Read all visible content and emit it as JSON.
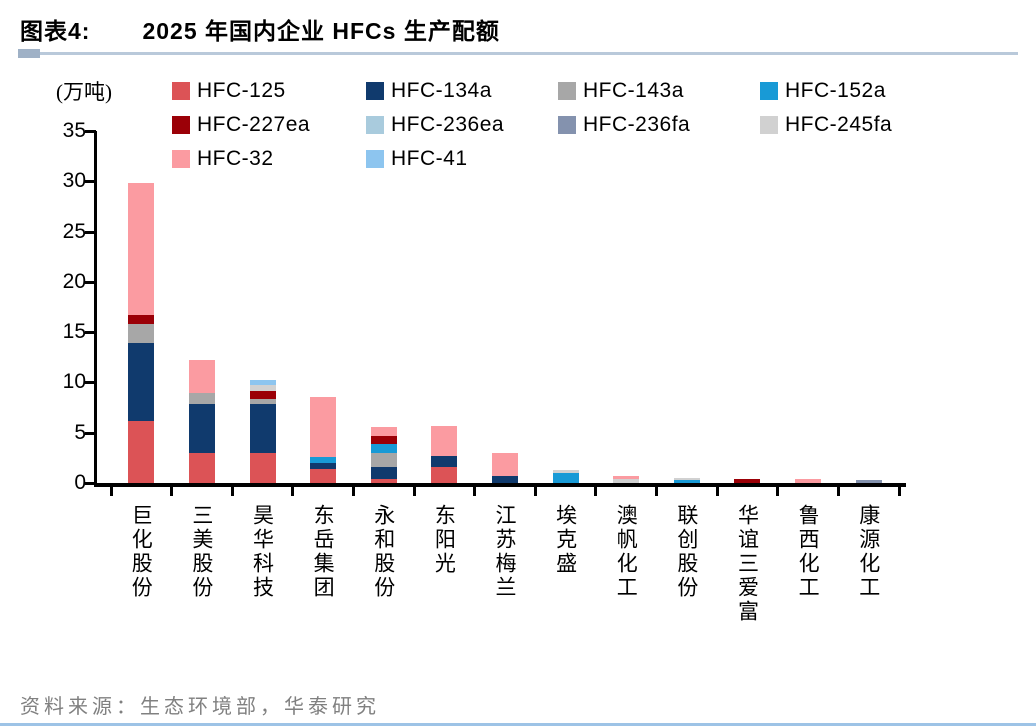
{
  "header": {
    "label": "图表4:",
    "title": "2025 年国内企业 HFCs 生产配额"
  },
  "footer": {
    "source": "资料来源：生态环境部，华泰研究"
  },
  "colors": {
    "header_rule": "#b9c9da",
    "bottom_rule": "#9dc3e6",
    "footer_text": "#808080",
    "axis": "#000000"
  },
  "chart_data": {
    "type": "bar",
    "stacked": true,
    "title": "2025 年国内企业 HFCs 生产配额",
    "unit_label": "(万吨)",
    "ylabel": "万吨",
    "ylim": [
      0,
      35
    ],
    "yticks": [
      0,
      5,
      10,
      15,
      20,
      25,
      30,
      35
    ],
    "grid": false,
    "legend_position": "top",
    "categories": [
      "巨化股份",
      "三美股份",
      "昊华科技",
      "东岳集团",
      "永和股份",
      "东阳光",
      "江苏梅兰",
      "埃克盛",
      "澳帆化工",
      "联创股份",
      "华谊三爱富",
      "鲁西化工",
      "康源化工"
    ],
    "series": [
      {
        "name": "HFC-125",
        "color": "#dc5356",
        "values": [
          6.2,
          3.0,
          3.0,
          1.4,
          0.4,
          1.6,
          0,
          0,
          0,
          0,
          0,
          0,
          0
        ]
      },
      {
        "name": "HFC-134a",
        "color": "#103a6d",
        "values": [
          7.7,
          4.9,
          4.9,
          0.6,
          1.2,
          1.1,
          0.7,
          0,
          0,
          0,
          0,
          0,
          0
        ]
      },
      {
        "name": "HFC-143a",
        "color": "#a7a7a7",
        "values": [
          1.9,
          1.1,
          0.5,
          0,
          1.4,
          0,
          0,
          0,
          0,
          0,
          0,
          0,
          0
        ]
      },
      {
        "name": "HFC-152a",
        "color": "#189ad6",
        "values": [
          0,
          0,
          0,
          0.6,
          0.9,
          0,
          0,
          1.0,
          0,
          0.3,
          0,
          0,
          0
        ]
      },
      {
        "name": "HFC-227ea",
        "color": "#9b0007",
        "values": [
          0.9,
          0,
          0.8,
          0,
          0.8,
          0,
          0,
          0,
          0,
          0,
          0.4,
          0,
          0
        ]
      },
      {
        "name": "HFC-236ea",
        "color": "#a9cbdd",
        "values": [
          0,
          0,
          0,
          0,
          0,
          0,
          0,
          0,
          0,
          0,
          0,
          0,
          0
        ]
      },
      {
        "name": "HFC-236fa",
        "color": "#8492ae",
        "values": [
          0,
          0,
          0,
          0,
          0,
          0,
          0,
          0,
          0,
          0,
          0,
          0,
          0.3
        ]
      },
      {
        "name": "HFC-245fa",
        "color": "#d1d1d1",
        "values": [
          0,
          0,
          0.6,
          0,
          0,
          0,
          0,
          0.3,
          0.4,
          0.2,
          0,
          0,
          0
        ]
      },
      {
        "name": "HFC-32",
        "color": "#fb9ba1",
        "values": [
          13.1,
          3.2,
          0,
          6.0,
          0.9,
          3.0,
          2.3,
          0,
          0.3,
          0,
          0,
          0.4,
          0
        ]
      },
      {
        "name": "HFC-41",
        "color": "#8dc5ef",
        "values": [
          0,
          0,
          0.4,
          0,
          0,
          0,
          0,
          0,
          0,
          0,
          0,
          0,
          0
        ]
      }
    ],
    "totals": [
      29.8,
      12.2,
      10.2,
      8.6,
      5.6,
      5.7,
      3.0,
      1.3,
      0.7,
      0.5,
      0.4,
      0.4,
      0.3
    ]
  }
}
